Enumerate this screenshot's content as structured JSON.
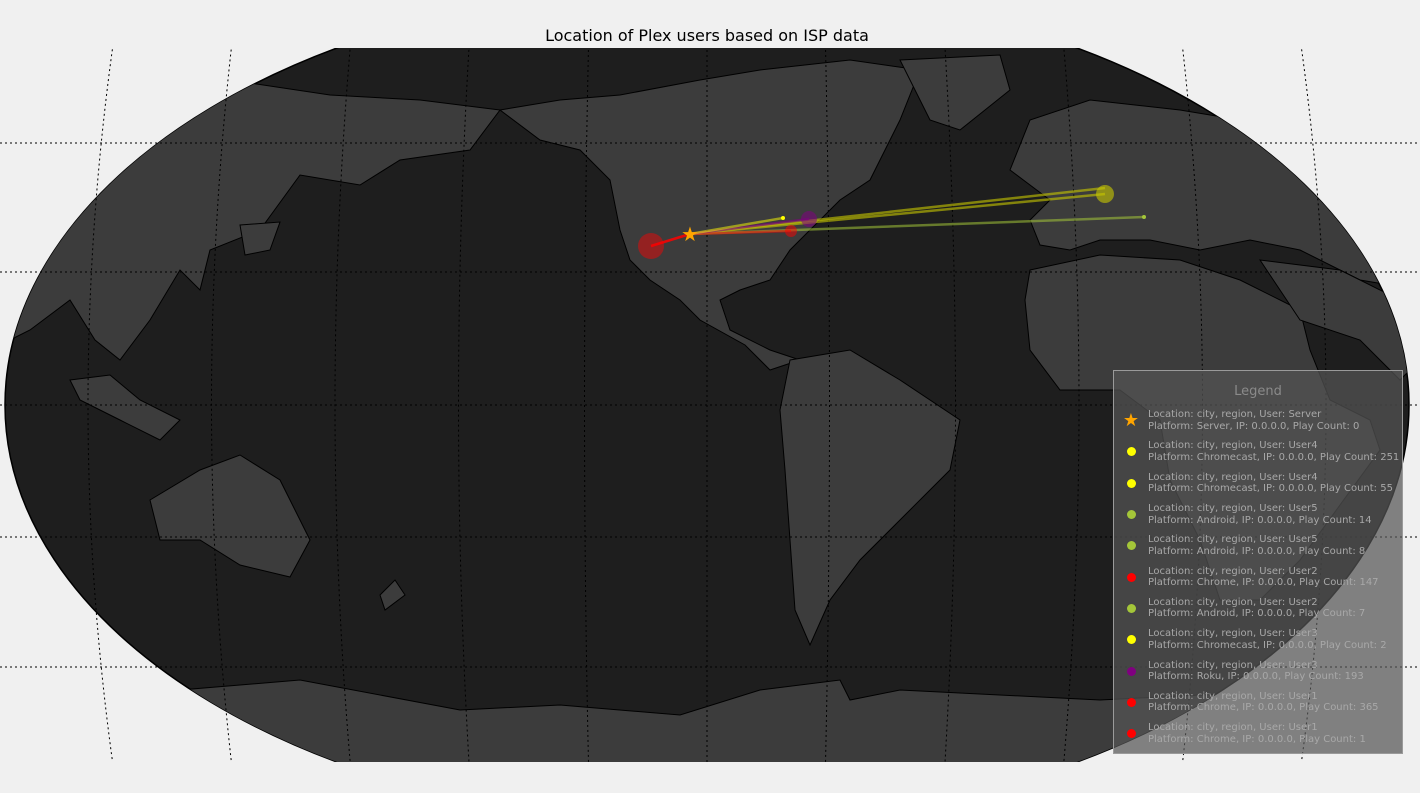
{
  "title": "Location of Plex users based on ISP data",
  "colors": {
    "ocean": "#1e1e1e",
    "land": "#3c3c3c",
    "server": "#ffa500"
  },
  "legend": {
    "title": "Legend",
    "items": [
      {
        "icon": "star",
        "color": "#ffa500",
        "line1": "Location: city, region,  User: Server",
        "line2": "Platform: Server, IP: 0.0.0.0, Play Count: 0"
      },
      {
        "icon": "dot",
        "color": "#ffff00",
        "line1": "Location: city, region,  User: User4",
        "line2": "Platform: Chromecast, IP: 0.0.0.0, Play Count: 251"
      },
      {
        "icon": "dot",
        "color": "#ffff00",
        "line1": "Location: city, region,  User: User4",
        "line2": "Platform: Chromecast, IP: 0.0.0.0, Play Count: 55"
      },
      {
        "icon": "dot",
        "color": "#a4c639",
        "line1": "Location: city, region,  User: User5",
        "line2": "Platform: Android, IP: 0.0.0.0, Play Count: 14"
      },
      {
        "icon": "dot",
        "color": "#a4c639",
        "line1": "Location: city, region,  User: User5",
        "line2": "Platform: Android, IP: 0.0.0.0, Play Count: 8"
      },
      {
        "icon": "dot",
        "color": "#ff0000",
        "line1": "Location: city, region,  User: User2",
        "line2": "Platform: Chrome, IP: 0.0.0.0, Play Count: 147"
      },
      {
        "icon": "dot",
        "color": "#a4c639",
        "line1": "Location: city, region,  User: User2",
        "line2": "Platform: Android, IP: 0.0.0.0, Play Count: 7"
      },
      {
        "icon": "dot",
        "color": "#ffff00",
        "line1": "Location: city, region,  User: User3",
        "line2": "Platform: Chromecast, IP: 0.0.0.0, Play Count: 2"
      },
      {
        "icon": "dot",
        "color": "#800080",
        "line1": "Location: city, region,  User: User3",
        "line2": "Platform: Roku, IP: 0.0.0.0, Play Count: 193"
      },
      {
        "icon": "dot",
        "color": "#ff0000",
        "line1": "Location: city, region,  User: User1",
        "line2": "Platform: Chrome, IP: 0.0.0.0, Play Count: 365"
      },
      {
        "icon": "dot",
        "color": "#ff0000",
        "line1": "Location: city, region,  User: User1",
        "line2": "Platform: Chrome, IP: 0.0.0.0, Play Count: 1"
      }
    ]
  }
}
